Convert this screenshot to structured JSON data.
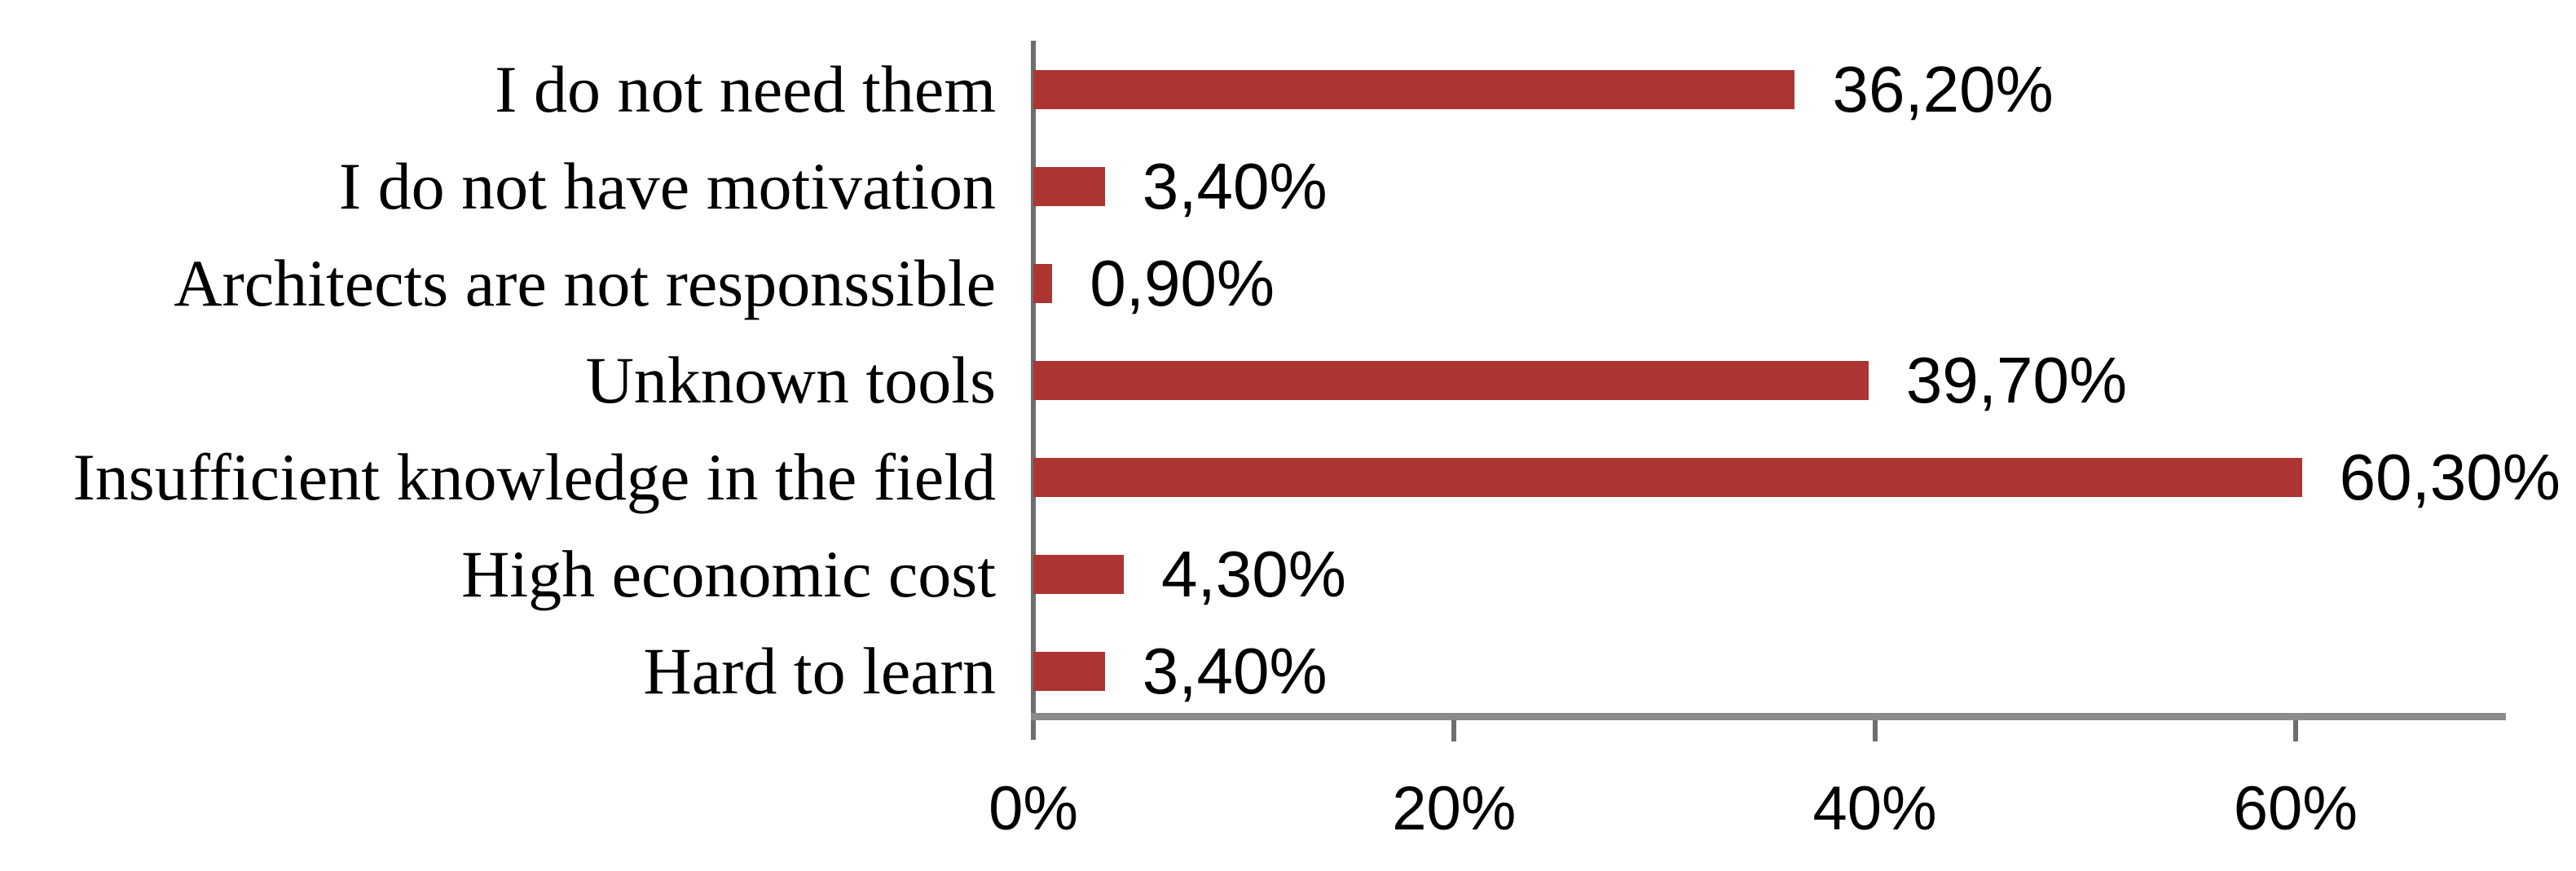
{
  "chart_data": {
    "type": "bar",
    "orientation": "horizontal",
    "title": "",
    "xlabel": "",
    "ylabel": "",
    "grid": false,
    "legend": "none",
    "categories": [
      "I do not need them",
      "I do not have motivation",
      "Architects are not responssible",
      "Unknown tools",
      "Insufficient knowledge in the field",
      "High economic cost",
      "Hard to learn"
    ],
    "values": [
      36.2,
      3.4,
      0.9,
      39.7,
      60.3,
      4.3,
      3.4
    ],
    "value_labels": [
      "36,20%",
      "3,40%",
      "0,90%",
      "39,70%",
      "60,30%",
      "4,30%",
      "3,40%"
    ],
    "x_tick_values": [
      0,
      20,
      40,
      60
    ],
    "x_tick_labels": [
      "0%",
      "20%",
      "40%",
      "60%"
    ],
    "xlim": [
      0,
      70
    ],
    "colors": {
      "bar": "#AC3534",
      "x_axis_line": "#8C8C8C",
      "y_axis_line": "#6E6E6E",
      "tick_mark": "#6E6E6E",
      "text": "#000000"
    }
  }
}
